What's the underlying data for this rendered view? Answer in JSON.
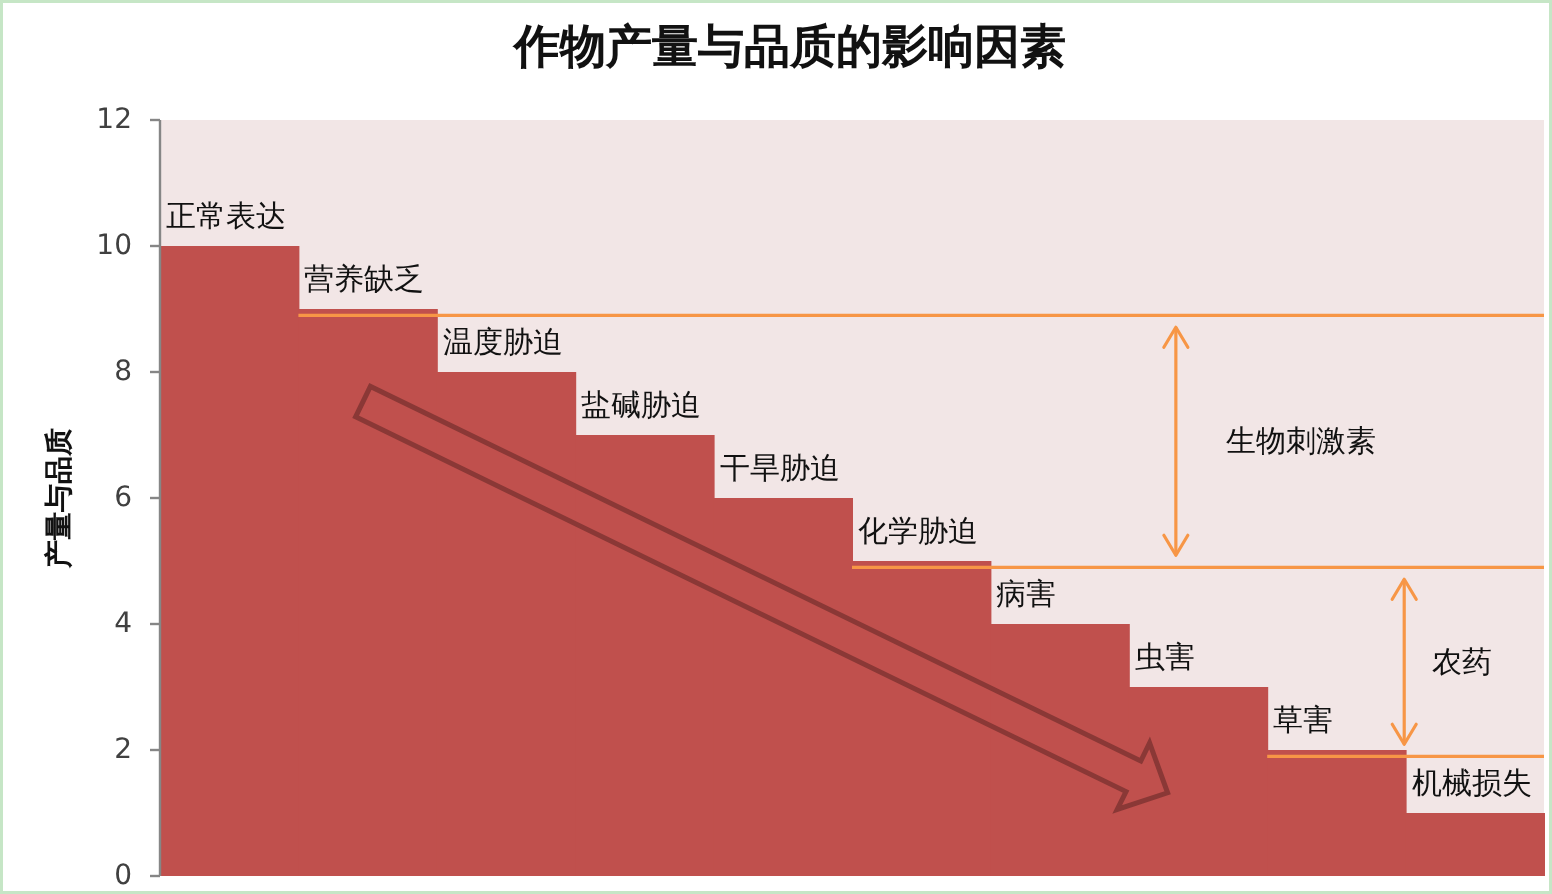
{
  "chart_data": {
    "type": "bar",
    "title": "作物产量与品质的影响因素",
    "ylabel": "产量与品质",
    "categories": [
      "正常表达",
      "营养缺乏",
      "温度胁迫",
      "盐碱胁迫",
      "干旱胁迫",
      "化学胁迫",
      "病害",
      "虫害",
      "草害",
      "机械损失"
    ],
    "values": [
      10,
      9,
      8,
      7,
      6,
      5,
      4,
      3,
      2,
      1
    ],
    "color": "#c0504d",
    "ylim": [
      0,
      12
    ],
    "yticks": [
      0,
      2,
      4,
      6,
      8,
      10,
      12
    ],
    "ref_lines": [
      {
        "axis": "y",
        "value": 8.9,
        "color": "#f79646"
      },
      {
        "axis": "y",
        "value": 4.9,
        "color": "#f79646"
      },
      {
        "axis": "y",
        "value": 1.9,
        "color": "#f79646"
      }
    ],
    "annotations": [
      "生物刺激素",
      "农药"
    ]
  }
}
